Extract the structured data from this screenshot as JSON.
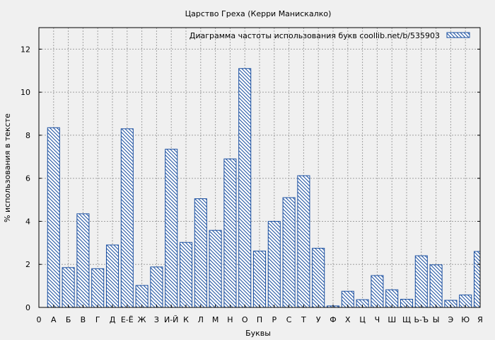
{
  "chart_data": {
    "type": "bar",
    "title": "Царство Греха (Керри Манискалко)",
    "xlabel": "Буквы",
    "ylabel": "% использования в тексте",
    "legend": {
      "label": "Диаграмма частоты использования букв  coollib.net/b/535903",
      "position": "top-right"
    },
    "grid": true,
    "ylim": [
      0,
      13
    ],
    "yticks": [
      0,
      2,
      4,
      6,
      8,
      10,
      12
    ],
    "xticks": [
      "0",
      "А",
      "Б",
      "В",
      "Г",
      "Д",
      "Е-Ё",
      "Ж",
      "З",
      "И-Й",
      "К",
      "Л",
      "М",
      "Н",
      "О",
      "П",
      "Р",
      "С",
      "Т",
      "У",
      "Ф",
      "Х",
      "Ц",
      "Ч",
      "Ш",
      "Щ",
      "Ь-Ъ",
      "Ы",
      "Э",
      "Ю",
      "Я"
    ],
    "categories": [
      "А",
      "Б",
      "В",
      "Г",
      "Д",
      "Е-Ё",
      "Ж",
      "З",
      "И-Й",
      "К",
      "Л",
      "М",
      "Н",
      "О",
      "П",
      "Р",
      "С",
      "Т",
      "У",
      "Ф",
      "Х",
      "Ц",
      "Ч",
      "Ш",
      "Щ",
      "Ь-Ъ",
      "Ы",
      "Э",
      "Ю",
      "Я"
    ],
    "values": [
      8.35,
      1.85,
      4.35,
      1.8,
      2.9,
      8.3,
      1.02,
      1.88,
      7.35,
      3.02,
      5.05,
      3.58,
      6.9,
      11.1,
      2.62,
      4.0,
      5.1,
      6.12,
      2.75,
      0.07,
      0.75,
      0.36,
      1.48,
      0.82,
      0.38,
      2.4,
      1.98,
      0.33,
      0.58,
      2.6
    ],
    "colors": {
      "bar": "#1a4fa0",
      "background": "#f0f0f0",
      "grid": "#a0a0a0"
    }
  }
}
